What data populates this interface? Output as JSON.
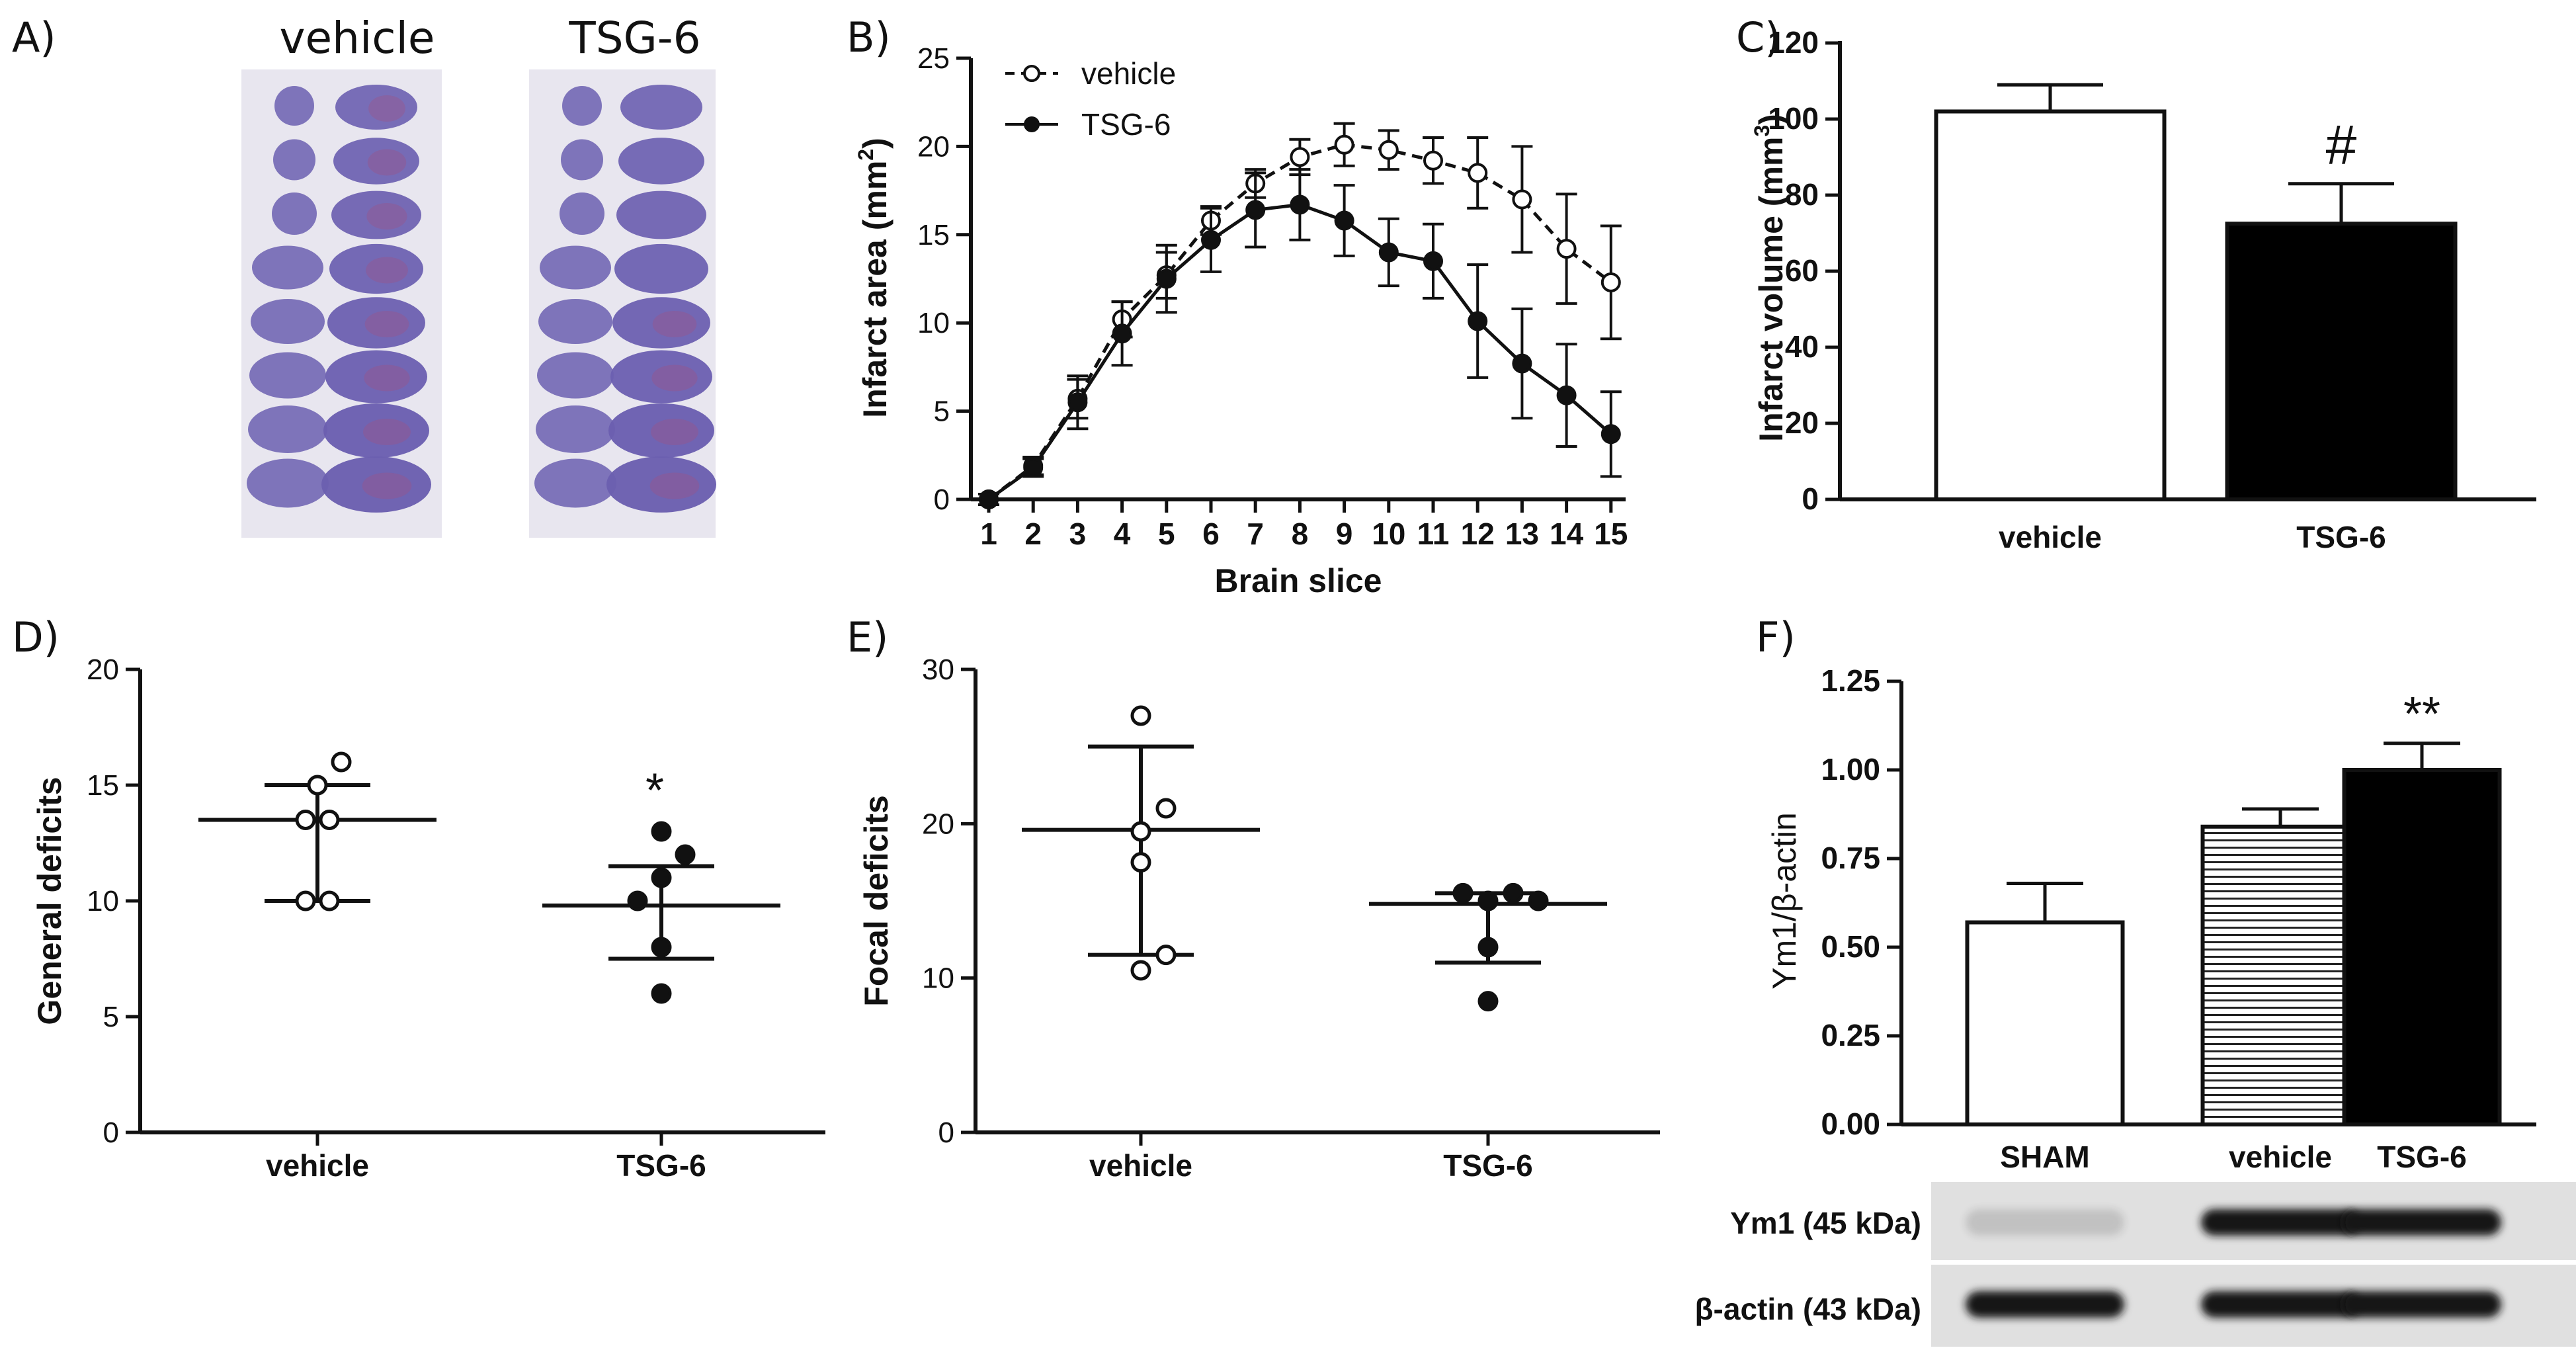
{
  "panels": {
    "A": "A)",
    "B": "B)",
    "C": "C)",
    "D": "D)",
    "E": "E)",
    "F": "F)"
  },
  "colors": {
    "ink": "#111111",
    "slice_bg": "#e8e6ef",
    "slice_tissue": "#6b5fb0",
    "blot_bg": "#e0e0e0",
    "band": "#151515"
  },
  "panel_a": {
    "labels": [
      "vehicle",
      "TSG-6"
    ]
  },
  "chart_data": [
    {
      "id": "B",
      "type": "line",
      "title": "",
      "xlabel": "Brain slice",
      "ylabel": "Infarct area (mm 2)",
      "ylabel_base": "Infarct area (mm",
      "ylabel_sup": "2",
      "ylabel_close": ")",
      "ylim": [
        0,
        25
      ],
      "yticks": [
        "0",
        "5",
        "10",
        "15",
        "20",
        "25"
      ],
      "x": [
        "1",
        "2",
        "3",
        "4",
        "5",
        "6",
        "7",
        "8",
        "9",
        "10",
        "11",
        "12",
        "13",
        "14",
        "15"
      ],
      "legend_position": "top-left",
      "series": [
        {
          "name": "vehicle",
          "marker": "open-circle",
          "line": "dashed",
          "values": [
            0,
            1.9,
            5.7,
            10.2,
            12.7,
            15.8,
            17.9,
            19.4,
            20.1,
            19.8,
            19.2,
            18.5,
            17.0,
            14.2,
            12.3
          ],
          "errors": [
            0.3,
            0.5,
            1.1,
            1.0,
            1.3,
            0.8,
            0.8,
            1.0,
            1.2,
            1.1,
            1.3,
            2.0,
            3.0,
            3.1,
            3.2
          ]
        },
        {
          "name": "TSG-6",
          "marker": "filled-circle",
          "line": "solid",
          "values": [
            0,
            1.8,
            5.5,
            9.4,
            12.5,
            14.7,
            16.4,
            16.7,
            15.8,
            14.0,
            13.5,
            10.1,
            7.7,
            5.9,
            3.7
          ],
          "errors": [
            0.3,
            0.5,
            1.5,
            1.8,
            1.9,
            1.8,
            2.1,
            2.0,
            2.0,
            1.9,
            2.1,
            3.2,
            3.1,
            2.9,
            2.4
          ]
        }
      ]
    },
    {
      "id": "C",
      "type": "bar",
      "title": "",
      "xlabel": "",
      "ylabel": "Infarct volume (mm3)",
      "ylabel_base": "Infarct volume (mm",
      "ylabel_sup": "3",
      "ylabel_close": ")",
      "ylim": [
        0,
        120
      ],
      "yticks": [
        "0",
        "20",
        "40",
        "60",
        "80",
        "100",
        "120"
      ],
      "categories": [
        "vehicle",
        "TSG-6"
      ],
      "values": [
        102,
        72.5
      ],
      "errors": [
        7,
        10.5
      ],
      "fills": [
        "white",
        "black"
      ],
      "annotation": "#"
    },
    {
      "id": "D",
      "type": "scatter",
      "title": "",
      "ylabel": "General deficits",
      "ylim": [
        0,
        20
      ],
      "yticks": [
        "0",
        "5",
        "10",
        "15",
        "20"
      ],
      "categories": [
        "vehicle",
        "TSG-6"
      ],
      "points": [
        [
          [
            13.5,
            -0.5
          ],
          [
            13.5,
            0.5
          ],
          [
            15.0,
            0.0
          ],
          [
            16.0,
            1.0
          ],
          [
            10.0,
            -0.5
          ],
          [
            10.0,
            0.5
          ]
        ],
        [
          [
            13.0,
            0.0
          ],
          [
            12.0,
            1.0
          ],
          [
            11.0,
            0.0
          ],
          [
            10.0,
            -1.0
          ],
          [
            8.0,
            0.0
          ],
          [
            6.0,
            0.0
          ]
        ]
      ],
      "mean": [
        13.5,
        9.8
      ],
      "sd": [
        1.5,
        1.7
      ],
      "sd_low": [
        10.0,
        7.5
      ],
      "sd_high": [
        15.0,
        11.5
      ],
      "annotation": "*"
    },
    {
      "id": "E",
      "type": "scatter",
      "title": "",
      "ylabel": "Focal deficits",
      "ylim": [
        0,
        30
      ],
      "yticks": [
        "0",
        "10",
        "20",
        "30"
      ],
      "categories": [
        "vehicle",
        "TSG-6"
      ],
      "points": [
        [
          [
            27.0,
            0.0
          ],
          [
            21.0,
            1.0
          ],
          [
            19.5,
            0.0
          ],
          [
            17.5,
            0.0
          ],
          [
            11.5,
            1.0
          ],
          [
            10.5,
            0.0
          ]
        ],
        [
          [
            15.5,
            -1.0
          ],
          [
            15.0,
            0.0
          ],
          [
            15.5,
            1.0
          ],
          [
            15.0,
            2.0
          ],
          [
            12.0,
            0.0
          ],
          [
            8.5,
            0.0
          ]
        ]
      ],
      "mean": [
        19.6,
        14.8
      ],
      "sd_low": [
        11.5,
        11.0
      ],
      "sd_high": [
        25.0,
        15.5
      ]
    },
    {
      "id": "F",
      "type": "bar",
      "title": "",
      "ylabel": "Ym1/β-actin",
      "ylim": [
        0,
        1.25
      ],
      "yticks": [
        "0.00",
        "0.25",
        "0.50",
        "0.75",
        "1.00",
        "1.25"
      ],
      "categories": [
        "SHAM",
        "vehicle",
        "TSG-6"
      ],
      "values": [
        0.57,
        0.84,
        1.0
      ],
      "errors": [
        0.11,
        0.05,
        0.075
      ],
      "fills": [
        "white",
        "striped",
        "black"
      ],
      "annotation": "**"
    }
  ],
  "blot": {
    "rows": [
      {
        "label": "Ym1 (45 kDa)",
        "band_intensity": [
          0.15,
          1.0,
          1.0
        ]
      },
      {
        "label": "β-actin (43 kDa)",
        "band_intensity": [
          1.0,
          1.0,
          1.0
        ]
      }
    ]
  }
}
